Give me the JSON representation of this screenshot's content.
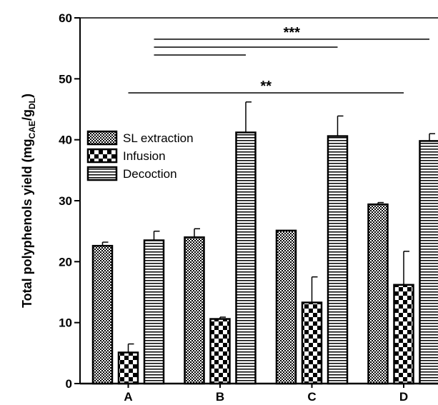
{
  "chart_data": {
    "type": "bar",
    "categories": [
      "A",
      "B",
      "C",
      "D"
    ],
    "series": [
      {
        "name": "SL extraction",
        "pattern": "checker-fine",
        "values": [
          22.6,
          24.0,
          25.1,
          29.4
        ],
        "errors": [
          0.6,
          1.4,
          0.0,
          0.3
        ]
      },
      {
        "name": "Infusion",
        "pattern": "checker-coarse",
        "values": [
          5.1,
          10.6,
          13.3,
          16.2
        ],
        "errors": [
          1.4,
          0.3,
          4.2,
          5.5
        ]
      },
      {
        "name": "Decoction",
        "pattern": "horizontal-stripes",
        "values": [
          23.5,
          41.2,
          40.6,
          39.8
        ],
        "errors": [
          1.5,
          5.0,
          3.3,
          1.2
        ]
      }
    ],
    "ylabel": {
      "main": "Total polyphenols yield (mg",
      "sub1": "CAE",
      "mid": "/g",
      "sub2": "DL",
      "end": ")"
    },
    "ylim": [
      0,
      60
    ],
    "yticks": [
      "0",
      "10",
      "20",
      "30",
      "40",
      "50",
      "60"
    ],
    "legend_position": "left-middle",
    "significance": [
      {
        "label": "***",
        "lines": [
          {
            "from": "A-Decoction",
            "to": "D-Decoction",
            "y": 56.5
          },
          {
            "from": "A-Decoction",
            "to": "C-Decoction",
            "y": 55.2
          },
          {
            "from": "A-Decoction",
            "to": "B-Decoction",
            "y": 53.9
          }
        ]
      },
      {
        "label": "**",
        "lines": [
          {
            "from": "A-Infusion",
            "to": "D-Infusion",
            "y": 47.7
          }
        ]
      }
    ]
  }
}
